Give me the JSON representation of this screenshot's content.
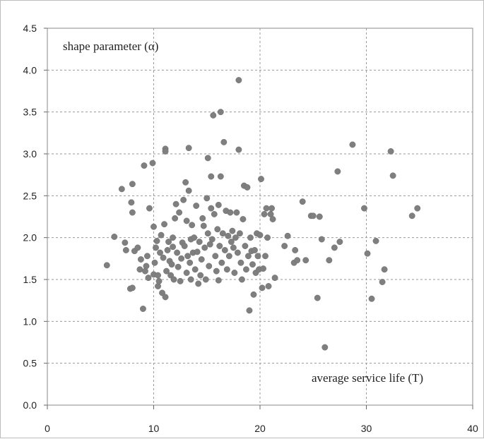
{
  "chart_data": {
    "type": "scatter",
    "title": "",
    "xlabel": "average service life (T)",
    "ylabel": "shape parameter (α)",
    "xlim": [
      0,
      40
    ],
    "ylim": [
      0,
      4.5
    ],
    "xticks": [
      "0",
      "10",
      "20",
      "30",
      "40"
    ],
    "yticks": [
      "0.0",
      "0.5",
      "1.0",
      "1.5",
      "2.0",
      "2.5",
      "3.0",
      "3.5",
      "4.0",
      "4.5"
    ],
    "grid": true,
    "marker_color": "#7f7f7f",
    "series": [
      {
        "points": [
          [
            5.6,
            1.67
          ],
          [
            6.3,
            2.01
          ],
          [
            7.0,
            2.58
          ],
          [
            7.3,
            1.94
          ],
          [
            7.4,
            1.85
          ],
          [
            7.8,
            1.39
          ],
          [
            8.0,
            1.4
          ],
          [
            7.9,
            2.42
          ],
          [
            8.0,
            2.3
          ],
          [
            8.0,
            2.64
          ],
          [
            8.2,
            1.84
          ],
          [
            8.5,
            1.88
          ],
          [
            8.7,
            1.62
          ],
          [
            8.8,
            1.74
          ],
          [
            9.0,
            1.15
          ],
          [
            9.1,
            2.86
          ],
          [
            9.2,
            1.6
          ],
          [
            9.3,
            1.66
          ],
          [
            9.4,
            1.78
          ],
          [
            9.5,
            1.52
          ],
          [
            9.6,
            2.35
          ],
          [
            9.9,
            2.89
          ],
          [
            10.0,
            1.56
          ],
          [
            10.0,
            2.13
          ],
          [
            10.1,
            1.7
          ],
          [
            10.2,
            1.88
          ],
          [
            10.3,
            1.96
          ],
          [
            10.4,
            1.55
          ],
          [
            10.4,
            1.42
          ],
          [
            10.5,
            1.48
          ],
          [
            10.6,
            1.82
          ],
          [
            10.7,
            2.03
          ],
          [
            10.8,
            1.34
          ],
          [
            10.9,
            1.76
          ],
          [
            11.0,
            2.16
          ],
          [
            11.1,
            1.29
          ],
          [
            11.1,
            3.06
          ],
          [
            11.1,
            3.03
          ],
          [
            11.2,
            1.6
          ],
          [
            11.3,
            1.85
          ],
          [
            11.4,
            1.95
          ],
          [
            11.5,
            1.72
          ],
          [
            11.6,
            1.55
          ],
          [
            11.7,
            1.68
          ],
          [
            11.8,
            1.89
          ],
          [
            11.8,
            2.0
          ],
          [
            11.9,
            1.5
          ],
          [
            12.0,
            2.23
          ],
          [
            12.1,
            2.4
          ],
          [
            12.2,
            1.82
          ],
          [
            12.3,
            1.65
          ],
          [
            12.4,
            2.3
          ],
          [
            12.5,
            1.48
          ],
          [
            12.6,
            1.75
          ],
          [
            12.7,
            1.94
          ],
          [
            12.8,
            2.45
          ],
          [
            12.9,
            1.9
          ],
          [
            13.0,
            2.66
          ],
          [
            13.1,
            1.58
          ],
          [
            13.1,
            2.2
          ],
          [
            13.2,
            1.78
          ],
          [
            13.3,
            2.56
          ],
          [
            13.3,
            3.07
          ],
          [
            13.4,
            1.7
          ],
          [
            13.5,
            1.98
          ],
          [
            13.5,
            1.5
          ],
          [
            13.6,
            2.15
          ],
          [
            13.7,
            1.82
          ],
          [
            13.8,
            2.0
          ],
          [
            13.9,
            1.62
          ],
          [
            14.0,
            2.38
          ],
          [
            14.1,
            1.83
          ],
          [
            14.2,
            1.45
          ],
          [
            14.3,
            1.95
          ],
          [
            14.4,
            1.55
          ],
          [
            14.5,
            1.74
          ],
          [
            14.6,
            2.23
          ],
          [
            14.7,
            2.14
          ],
          [
            14.8,
            1.88
          ],
          [
            14.9,
            1.5
          ],
          [
            15.0,
            2.47
          ],
          [
            15.1,
            2.05
          ],
          [
            15.1,
            2.95
          ],
          [
            15.2,
            1.66
          ],
          [
            15.3,
            1.92
          ],
          [
            15.4,
            2.35
          ],
          [
            15.4,
            2.73
          ],
          [
            15.5,
            1.98
          ],
          [
            15.6,
            3.46
          ],
          [
            15.7,
            2.28
          ],
          [
            15.8,
            1.78
          ],
          [
            15.9,
            1.6
          ],
          [
            16.0,
            2.1
          ],
          [
            16.1,
            1.49
          ],
          [
            16.1,
            2.39
          ],
          [
            16.2,
            1.9
          ],
          [
            16.3,
            2.73
          ],
          [
            16.3,
            3.5
          ],
          [
            16.4,
            1.7
          ],
          [
            16.5,
            2.05
          ],
          [
            16.6,
            3.14
          ],
          [
            16.7,
            1.85
          ],
          [
            16.8,
            2.32
          ],
          [
            16.9,
            1.62
          ],
          [
            17.0,
            2.02
          ],
          [
            17.1,
            1.78
          ],
          [
            17.2,
            2.3
          ],
          [
            17.3,
            1.95
          ],
          [
            17.4,
            2.08
          ],
          [
            17.5,
            1.88
          ],
          [
            17.6,
            1.58
          ],
          [
            17.7,
            2.0
          ],
          [
            17.8,
            2.3
          ],
          [
            17.9,
            1.82
          ],
          [
            18.0,
            3.05
          ],
          [
            18.0,
            3.88
          ],
          [
            18.1,
            2.05
          ],
          [
            18.2,
            1.7
          ],
          [
            18.3,
            1.5
          ],
          [
            18.4,
            2.22
          ],
          [
            18.5,
            2.62
          ],
          [
            18.6,
            1.9
          ],
          [
            18.7,
            1.62
          ],
          [
            18.8,
            2.6
          ],
          [
            18.9,
            1.78
          ],
          [
            19.0,
            1.13
          ],
          [
            19.1,
            2.0
          ],
          [
            19.2,
            1.84
          ],
          [
            19.3,
            1.68
          ],
          [
            19.4,
            1.32
          ],
          [
            19.5,
            1.85
          ],
          [
            19.6,
            1.58
          ],
          [
            19.7,
            2.05
          ],
          [
            19.8,
            1.78
          ],
          [
            19.9,
            1.62
          ],
          [
            20.0,
            2.03
          ],
          [
            20.1,
            2.7
          ],
          [
            20.2,
            1.4
          ],
          [
            20.3,
            1.63
          ],
          [
            20.4,
            2.28
          ],
          [
            20.5,
            1.78
          ],
          [
            20.6,
            2.35
          ],
          [
            20.7,
            2.0
          ],
          [
            20.8,
            1.42
          ],
          [
            21.0,
            2.28
          ],
          [
            21.1,
            2.35
          ],
          [
            21.2,
            2.22
          ],
          [
            21.4,
            1.52
          ],
          [
            22.3,
            1.9
          ],
          [
            22.6,
            2.02
          ],
          [
            23.2,
            1.7
          ],
          [
            23.3,
            1.85
          ],
          [
            23.5,
            1.73
          ],
          [
            24.0,
            2.43
          ],
          [
            24.3,
            1.73
          ],
          [
            24.8,
            2.26
          ],
          [
            25.0,
            2.26
          ],
          [
            25.4,
            1.28
          ],
          [
            25.6,
            2.25
          ],
          [
            25.8,
            1.98
          ],
          [
            26.1,
            0.69
          ],
          [
            26.5,
            1.73
          ],
          [
            27.0,
            1.88
          ],
          [
            27.3,
            2.79
          ],
          [
            27.5,
            1.95
          ],
          [
            28.7,
            3.11
          ],
          [
            29.8,
            2.35
          ],
          [
            30.1,
            1.81
          ],
          [
            30.5,
            1.27
          ],
          [
            30.9,
            1.96
          ],
          [
            31.5,
            1.47
          ],
          [
            31.7,
            1.62
          ],
          [
            32.3,
            3.03
          ],
          [
            32.5,
            2.74
          ],
          [
            34.3,
            2.26
          ],
          [
            34.8,
            2.35
          ]
        ]
      }
    ]
  }
}
